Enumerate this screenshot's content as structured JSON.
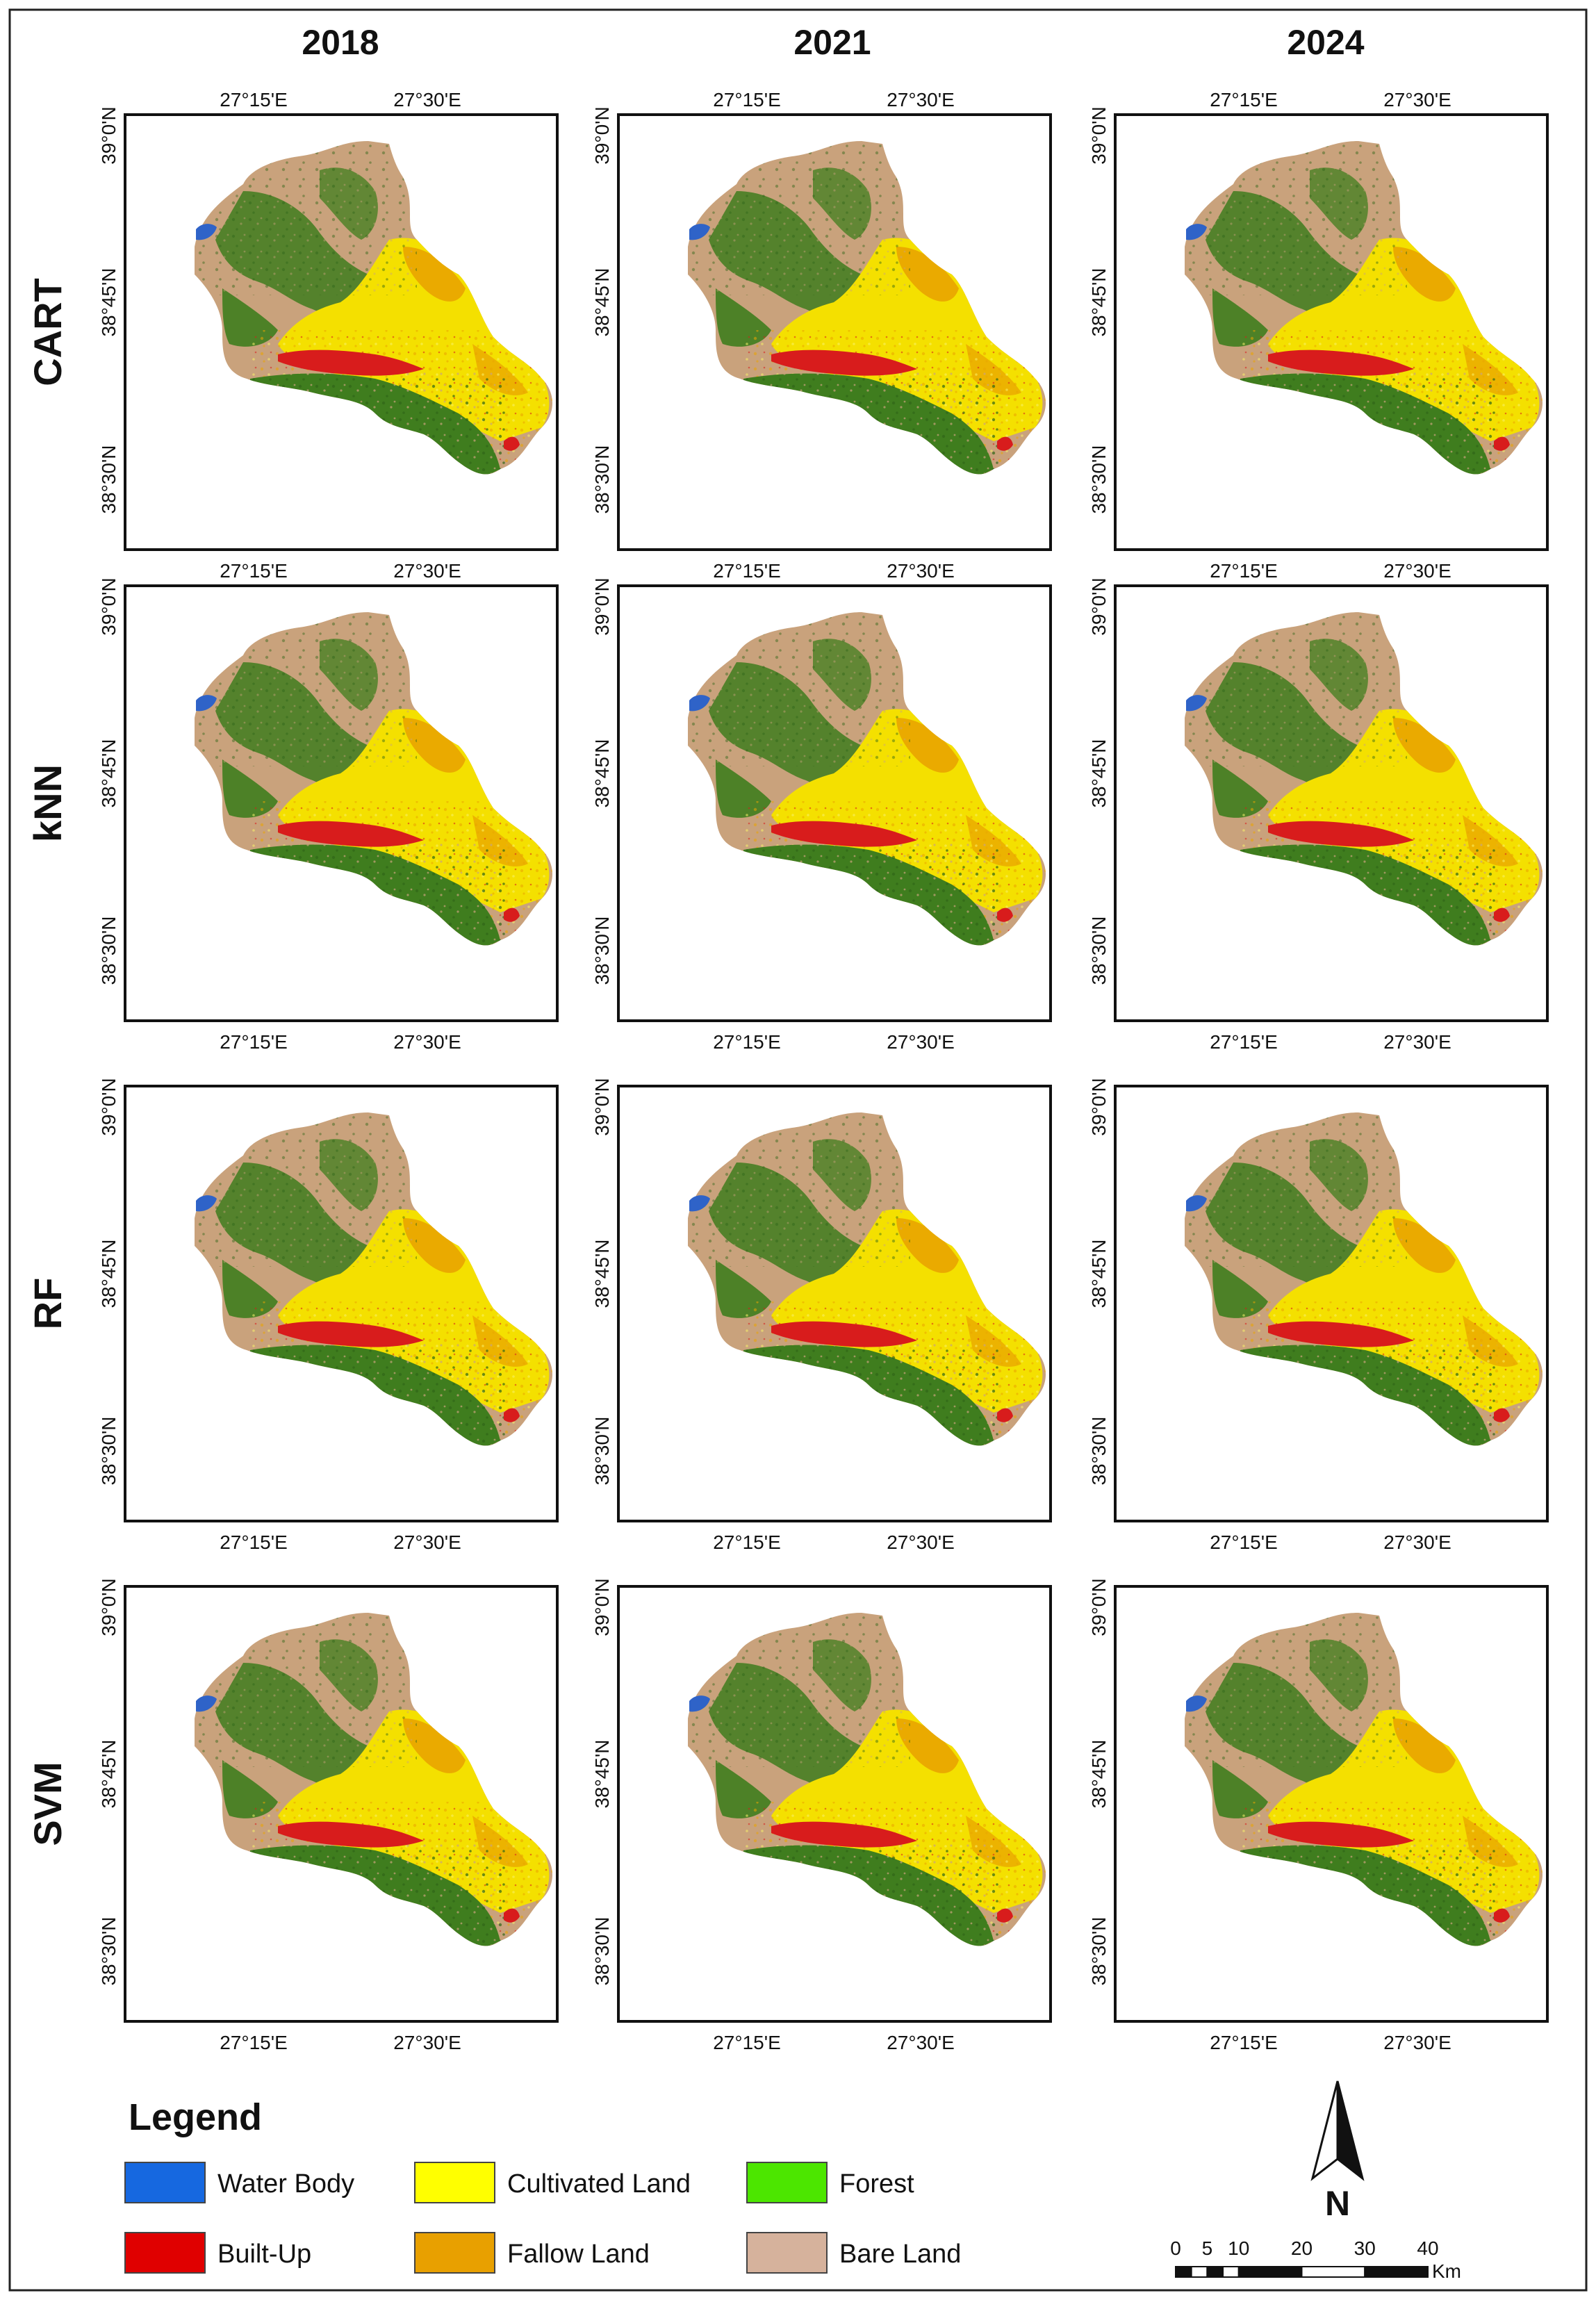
{
  "columns": [
    "2018",
    "2021",
    "2024"
  ],
  "rows": [
    "CART",
    "kNN",
    "RF",
    "SVM"
  ],
  "axis": {
    "lon_ticks": [
      "27°15'E",
      "27°30'E"
    ],
    "lat_ticks": [
      "39°0'N",
      "38°45'N",
      "38°30'N"
    ]
  },
  "legend": {
    "title": "Legend",
    "items": [
      {
        "label": "Water Body",
        "color": "#1668e0"
      },
      {
        "label": "Cultivated Land",
        "color": "#ffff00"
      },
      {
        "label": "Forest",
        "color": "#4ce600"
      },
      {
        "label": "Built-Up",
        "color": "#e00000"
      },
      {
        "label": "Fallow Land",
        "color": "#e8a000"
      },
      {
        "label": "Bare Land",
        "color": "#d6b29c"
      }
    ]
  },
  "north_arrow": {
    "label": "N"
  },
  "scale_bar": {
    "labels": [
      "0",
      "5",
      "10",
      "20",
      "30",
      "40"
    ],
    "unit": "Km"
  },
  "map_colors": {
    "bare": "#c9a27c",
    "forest": "#3f7d1e",
    "cultivated": "#f4e000",
    "fallow": "#e9a400",
    "builtup": "#d81c1c",
    "water": "#2f63c8"
  }
}
